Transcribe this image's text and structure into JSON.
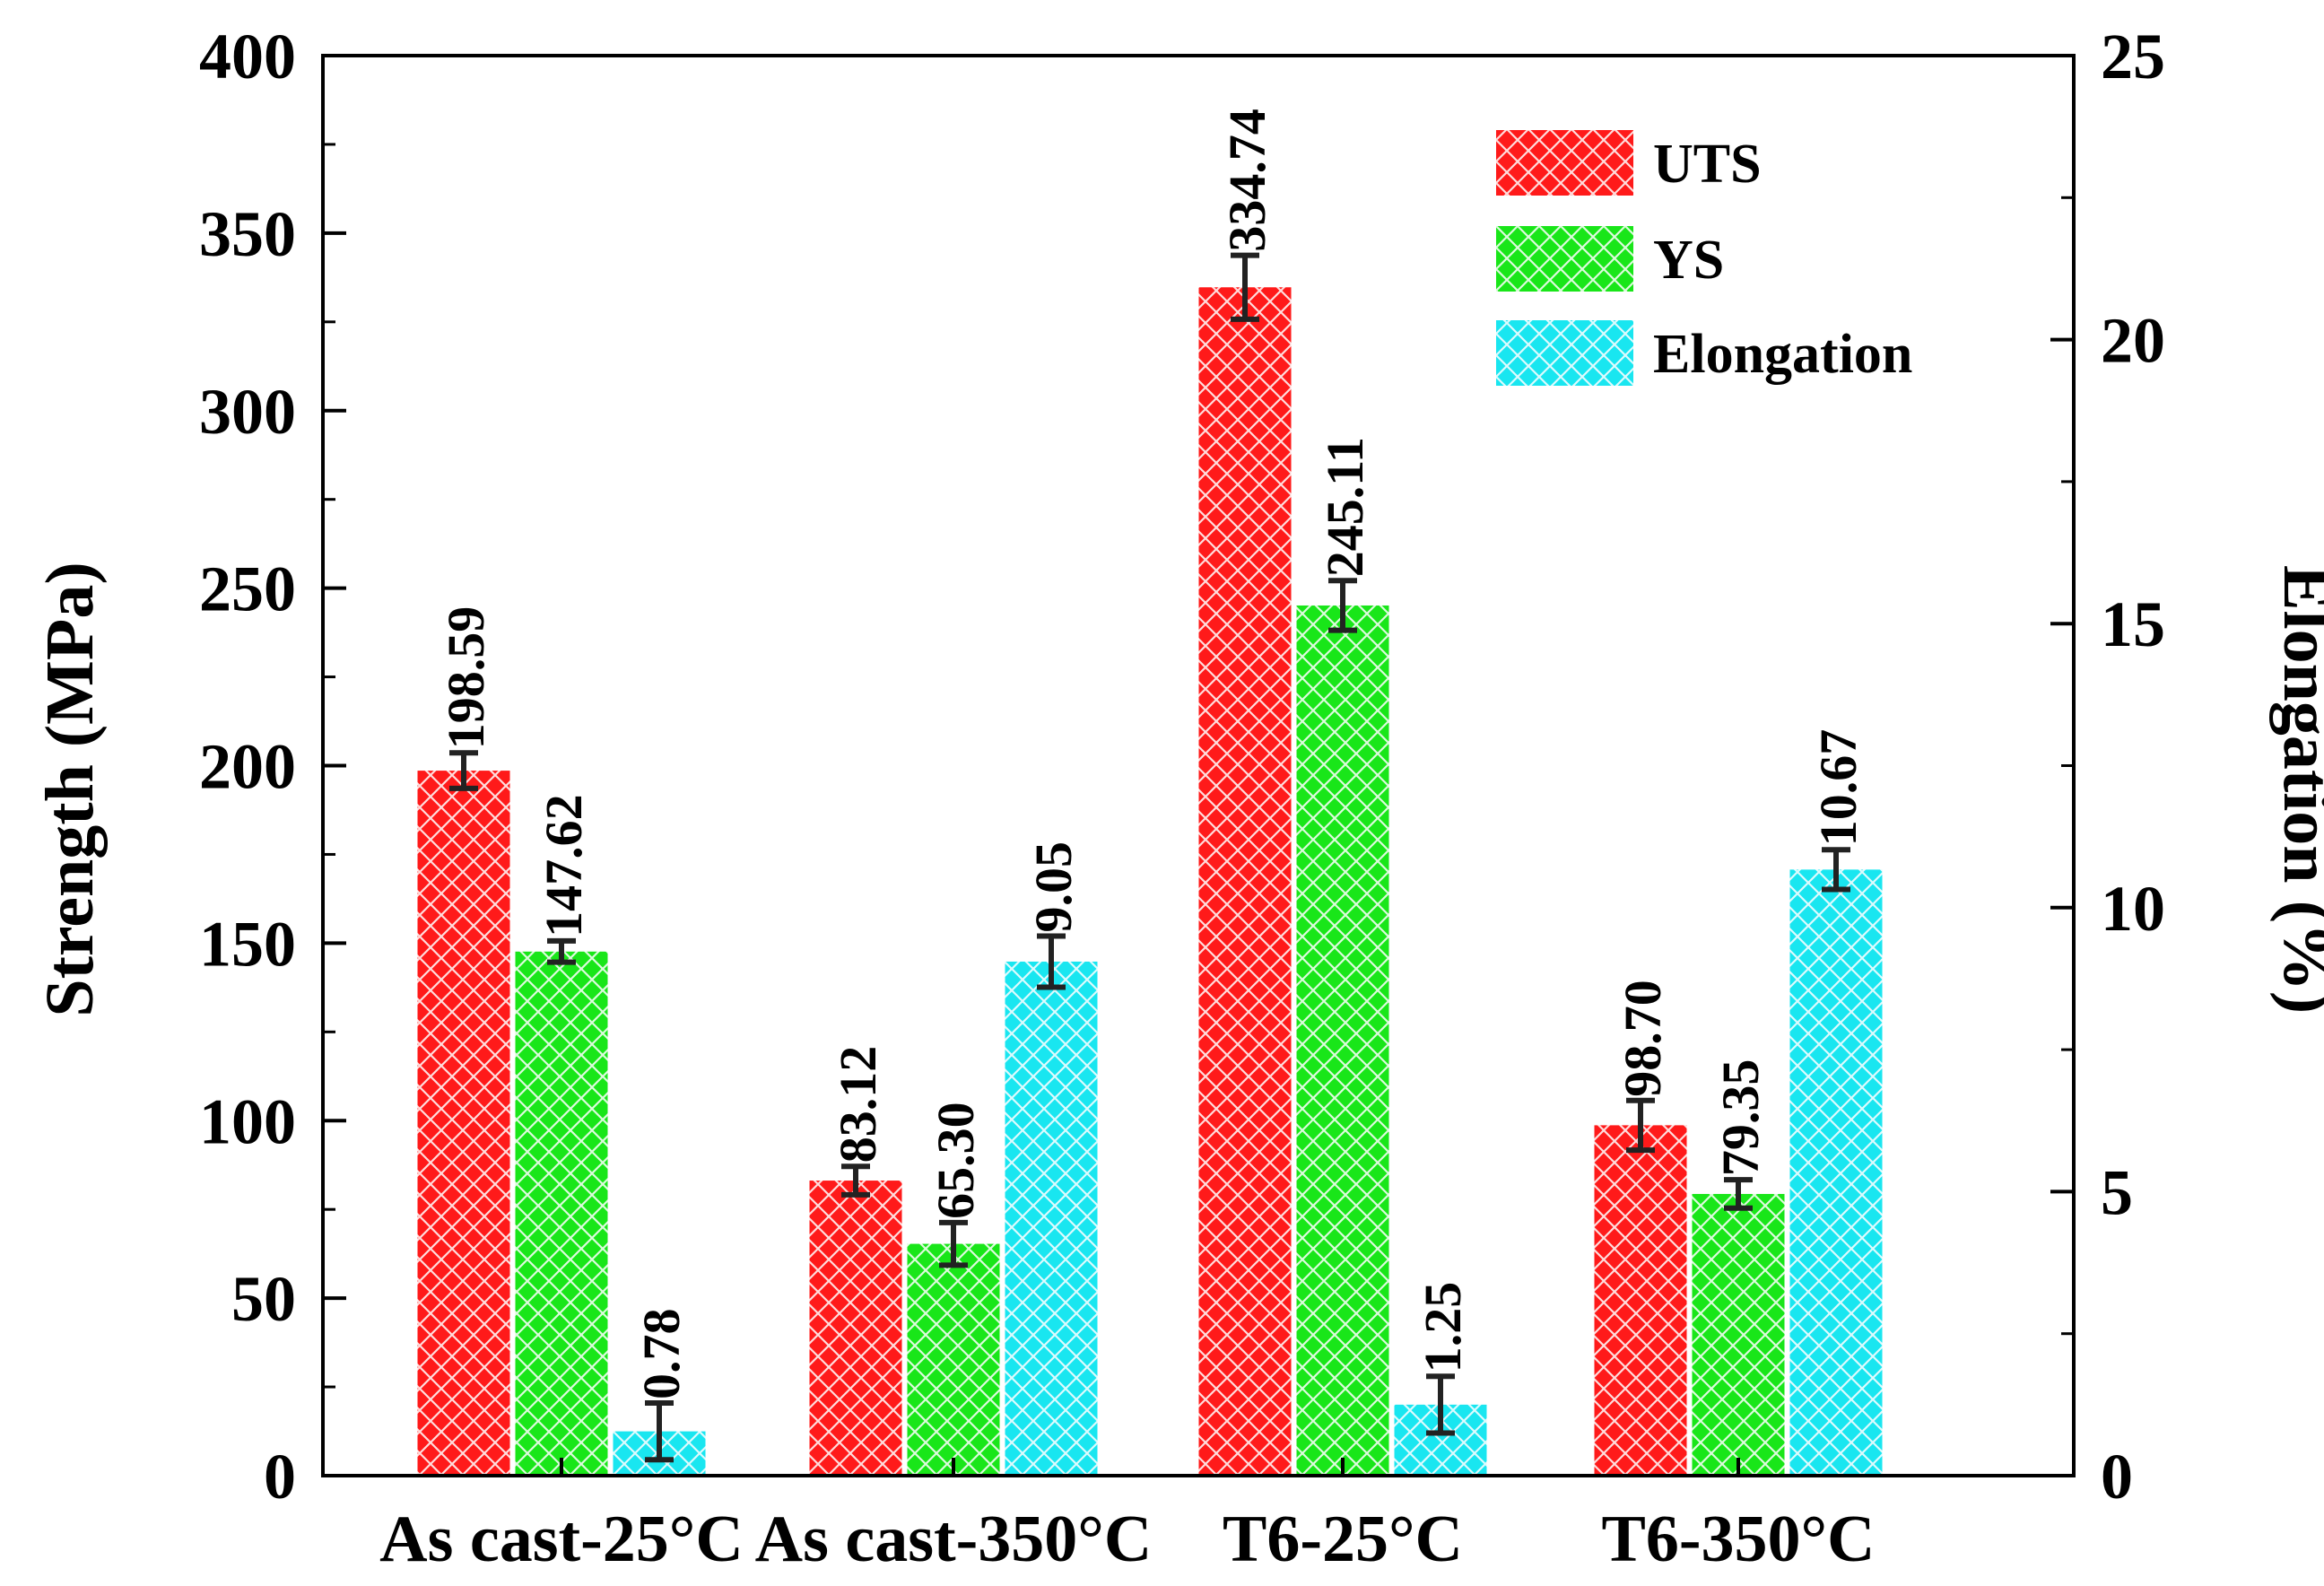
{
  "chart_data": {
    "type": "bar",
    "categories": [
      "As cast-25°C",
      "As cast-350°C",
      "T6-25°C",
      "T6-350°C"
    ],
    "series": [
      {
        "name": "UTS",
        "axis": "left",
        "values": [
          198.59,
          83.12,
          334.74,
          98.7
        ],
        "labels": [
          "198.59",
          "83.12",
          "334.74",
          "98.70"
        ],
        "errors": [
          5,
          4,
          9,
          7
        ],
        "color": "#ff1a1a"
      },
      {
        "name": "YS",
        "axis": "left",
        "values": [
          147.62,
          65.3,
          245.11,
          79.35
        ],
        "labels": [
          "147.62",
          "65.30",
          "245.11",
          "79.35"
        ],
        "errors": [
          3,
          6,
          7,
          4
        ],
        "color": "#19e619"
      },
      {
        "name": "Elongation",
        "axis": "right",
        "values": [
          0.78,
          9.05,
          1.25,
          10.67
        ],
        "labels": [
          "0.78",
          "9.05",
          "1.25",
          "10.67"
        ],
        "errors": [
          0.5,
          0.45,
          0.5,
          0.35
        ],
        "color": "#19e6f0"
      }
    ],
    "ylabel": "Strength (MPa)",
    "y2label": "Elongation (%)",
    "ylim": [
      0,
      400
    ],
    "y2lim": [
      0,
      25
    ],
    "yticks": [
      "0",
      "50",
      "100",
      "150",
      "200",
      "250",
      "300",
      "350",
      "400"
    ],
    "y2ticks": [
      "0",
      "5",
      "10",
      "15",
      "20",
      "25"
    ],
    "legend_position": "top-right",
    "grid": false
  }
}
